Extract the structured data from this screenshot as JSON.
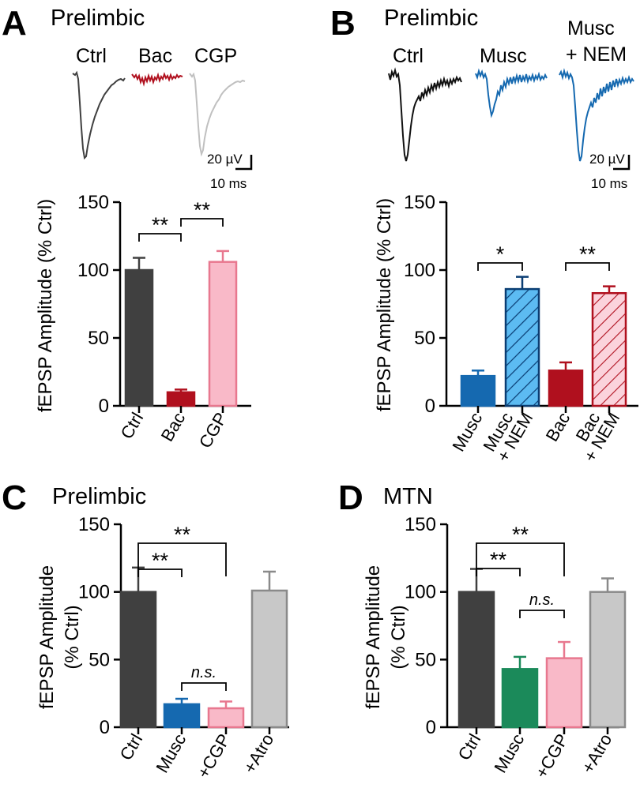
{
  "colors": {
    "ctrl": "#404040",
    "bac": "#b0101e",
    "cgp_fill": "#f9b9c8",
    "cgp_edge": "#e8788f",
    "musc_blue": "#1569b0",
    "nem_blue_fill": "#5cbbf2",
    "musc_green": "#1b8a5a",
    "atro_fill": "#c8c8c8",
    "atro_edge": "#8a8a8a",
    "trace_gray": "#c0c0c0"
  },
  "chart_data": [
    {
      "id": "A",
      "type": "bar",
      "panel_label": "A",
      "title": "Prelimbic",
      "ylabel": "fEPSP Amplitude (% Ctrl)",
      "ylim": [
        0,
        150
      ],
      "yticks": [
        "0",
        "50",
        "100",
        "150"
      ],
      "categories": [
        "Ctrl",
        "Bac",
        "CGP"
      ],
      "values": [
        100,
        10,
        106
      ],
      "errors": [
        9,
        2,
        8
      ],
      "significance": [
        {
          "pair": [
            "Ctrl",
            "Bac"
          ],
          "label": "**"
        },
        {
          "pair": [
            "Bac",
            "CGP"
          ],
          "label": "**"
        }
      ],
      "traces": {
        "labels": [
          "Ctrl",
          "Bac",
          "CGP"
        ],
        "scale_amplitude": "20 µV",
        "scale_time": "10 ms"
      }
    },
    {
      "id": "B",
      "type": "bar",
      "panel_label": "B",
      "title": "Prelimbic",
      "ylabel": "fEPSP Amplitude (% Ctrl)",
      "ylim": [
        0,
        150
      ],
      "yticks": [
        "0",
        "50",
        "100",
        "150"
      ],
      "categories": [
        [
          "Musc"
        ],
        [
          "Musc",
          "+ NEM"
        ],
        [
          "Bac"
        ],
        [
          "Bac",
          "+ NEM"
        ]
      ],
      "values": [
        22,
        86,
        26,
        83
      ],
      "errors": [
        4,
        9,
        6,
        5
      ],
      "significance": [
        {
          "pair": [
            "Musc",
            "Musc + NEM"
          ],
          "label": "*"
        },
        {
          "pair": [
            "Bac",
            "Bac + NEM"
          ],
          "label": "**"
        }
      ],
      "traces": {
        "labels": [
          "Ctrl",
          "Musc",
          "Musc",
          "+ NEM"
        ],
        "scale_amplitude": "20 µV",
        "scale_time": "10 ms"
      }
    },
    {
      "id": "C",
      "type": "bar",
      "panel_label": "C",
      "title": "Prelimbic",
      "ylabel_lines": [
        "fEPSP Amplitude",
        "(% Ctrl)"
      ],
      "ylim": [
        0,
        150
      ],
      "yticks": [
        "0",
        "50",
        "100",
        "150"
      ],
      "categories": [
        "Ctrl",
        "Musc",
        "+CGP",
        "+Atro"
      ],
      "values": [
        100,
        17,
        14,
        101
      ],
      "errors": [
        18,
        4,
        5,
        14
      ],
      "significance": [
        {
          "pair": [
            "Ctrl",
            "Musc"
          ],
          "label": "**"
        },
        {
          "pair": [
            "Ctrl",
            "+CGP"
          ],
          "label": "**"
        },
        {
          "pair": [
            "Musc",
            "+CGP"
          ],
          "label": "n.s."
        }
      ]
    },
    {
      "id": "D",
      "type": "bar",
      "panel_label": "D",
      "title": "MTN",
      "ylabel_lines": [
        "fEPSP Amplitude",
        "(% Ctrl)"
      ],
      "ylim": [
        0,
        150
      ],
      "yticks": [
        "0",
        "50",
        "100",
        "150"
      ],
      "categories": [
        "Ctrl",
        "Musc",
        "+CGP",
        "+Atro"
      ],
      "values": [
        100,
        43,
        51,
        100
      ],
      "errors": [
        17,
        9,
        12,
        10
      ],
      "significance": [
        {
          "pair": [
            "Ctrl",
            "Musc"
          ],
          "label": "**"
        },
        {
          "pair": [
            "Ctrl",
            "+CGP"
          ],
          "label": "**"
        },
        {
          "pair": [
            "Musc",
            "+CGP"
          ],
          "label": "n.s."
        }
      ]
    }
  ]
}
